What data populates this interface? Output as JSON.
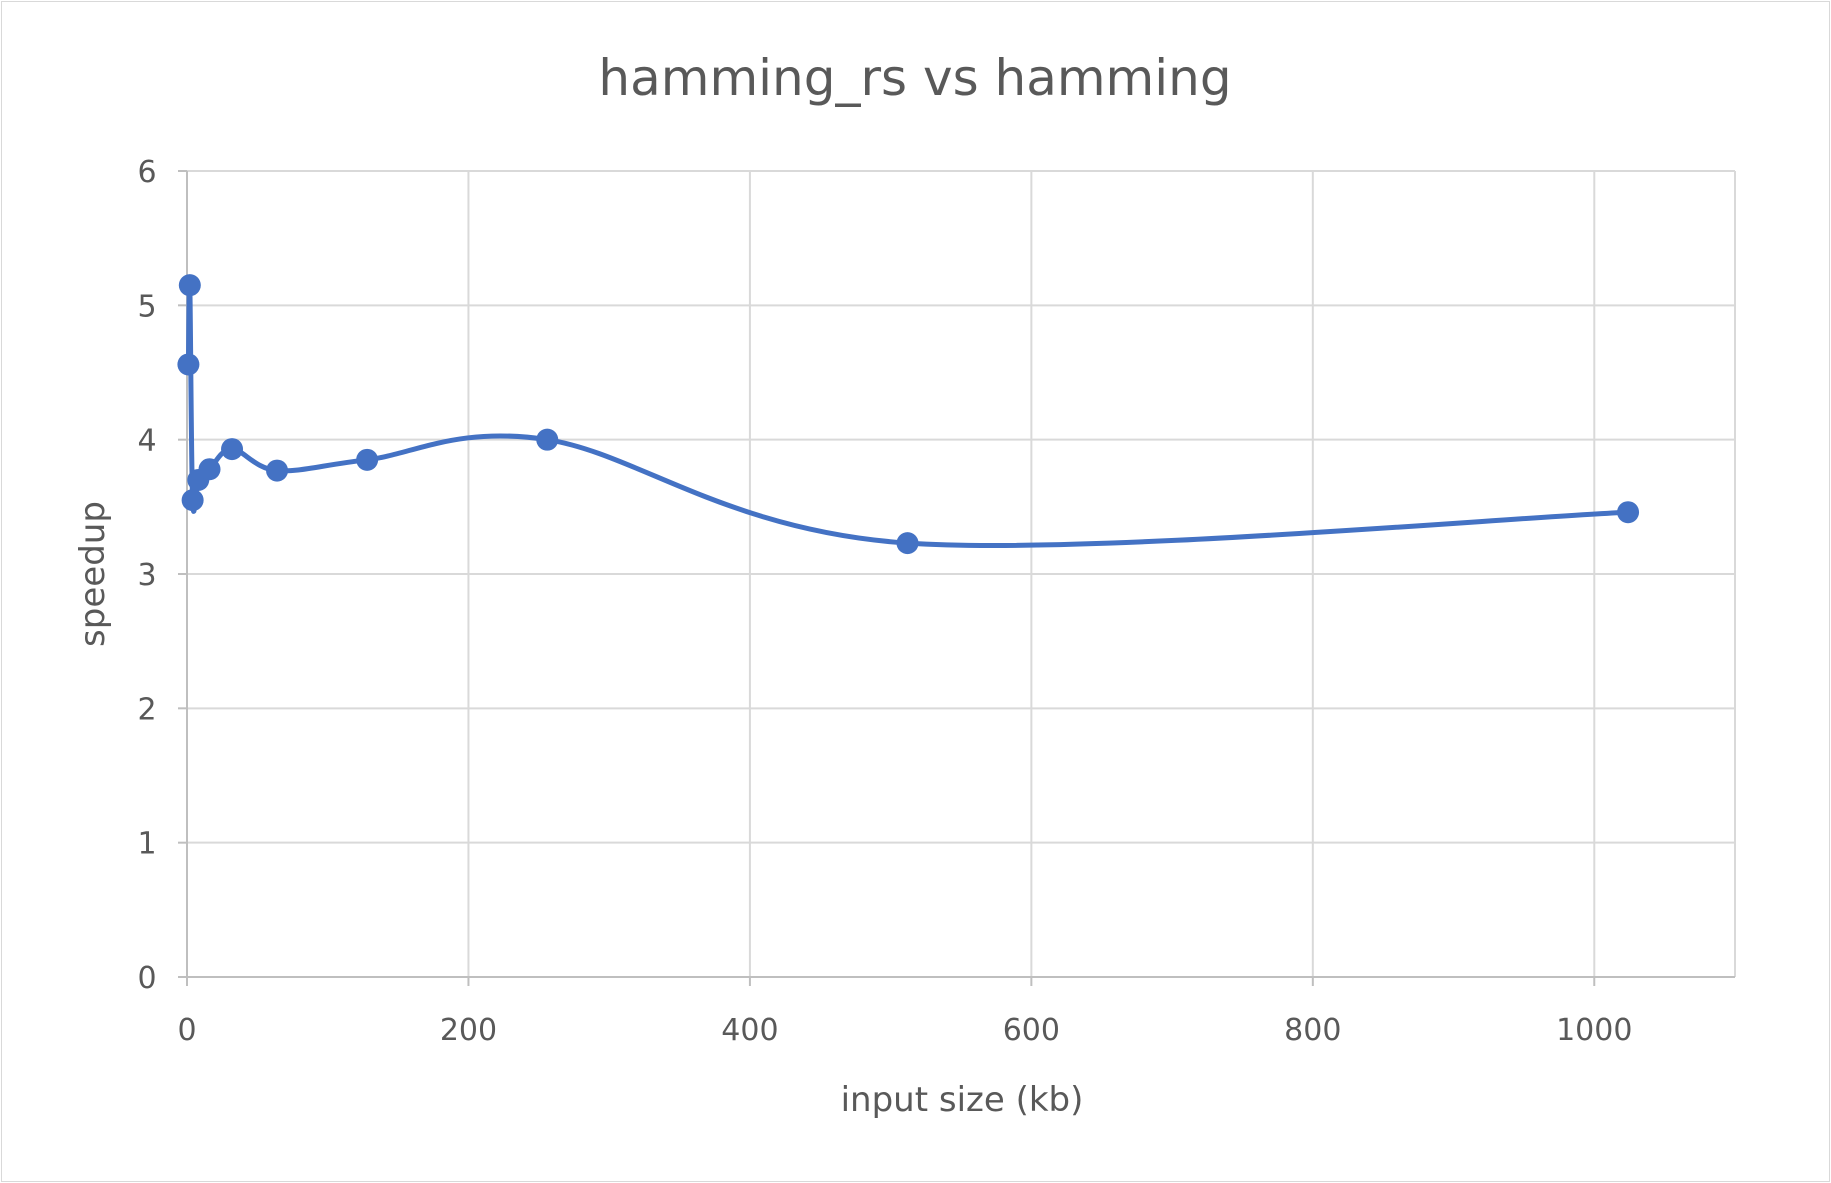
{
  "chart_data": {
    "type": "scatter",
    "title": "hamming_rs vs hamming",
    "xlabel": "input size (kb)",
    "ylabel": "speedup",
    "xlim": [
      0,
      1100
    ],
    "ylim": [
      0,
      6
    ],
    "x_ticks": [
      0,
      200,
      400,
      600,
      800,
      1000
    ],
    "y_ticks": [
      0,
      1,
      2,
      3,
      4,
      5,
      6
    ],
    "grid": true,
    "smoothed_line": true,
    "series": [
      {
        "color": "#4472c4",
        "points": [
          {
            "x": 1,
            "y": 4.56
          },
          {
            "x": 2,
            "y": 5.15
          },
          {
            "x": 4,
            "y": 3.55
          },
          {
            "x": 8,
            "y": 3.7
          },
          {
            "x": 16,
            "y": 3.78
          },
          {
            "x": 32,
            "y": 3.93
          },
          {
            "x": 64,
            "y": 3.77
          },
          {
            "x": 128,
            "y": 3.85
          },
          {
            "x": 256,
            "y": 4.0
          },
          {
            "x": 512,
            "y": 3.23
          },
          {
            "x": 1024,
            "y": 3.46
          }
        ]
      }
    ]
  }
}
